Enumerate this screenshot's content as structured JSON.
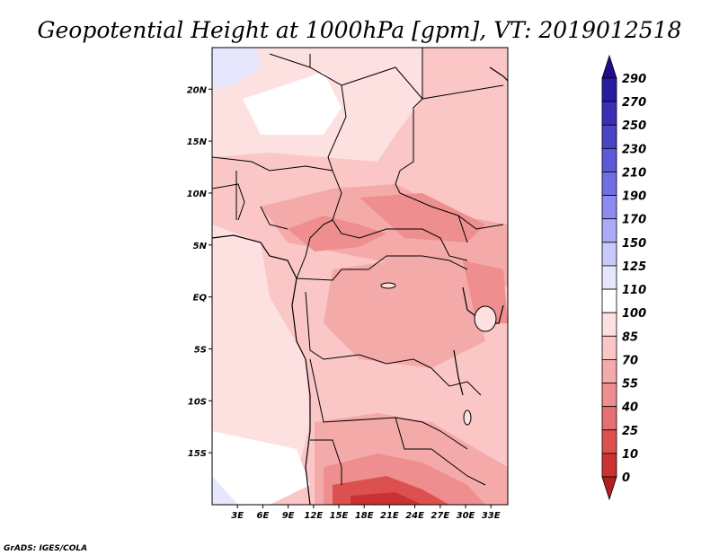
{
  "title": "Geopotential Height at 1000hPa [gpm], VT: 2019012518",
  "credit": "GrADS: IGES/COLA",
  "map": {
    "lon_range": [
      0,
      35
    ],
    "lat_range": [
      -20,
      24
    ],
    "lon_ticks": [
      "3E",
      "6E",
      "9E",
      "12E",
      "15E",
      "18E",
      "21E",
      "24E",
      "27E",
      "30E",
      "33E"
    ],
    "lat_ticks": [
      "20N",
      "15N",
      "10N",
      "5N",
      "EQ",
      "5S",
      "10S",
      "15S"
    ]
  },
  "colorbar": {
    "labels": [
      "290",
      "270",
      "250",
      "230",
      "210",
      "190",
      "170",
      "150",
      "125",
      "110",
      "100",
      "85",
      "70",
      "55",
      "40",
      "25",
      "10",
      "0"
    ],
    "colors": [
      "#1e0d8c",
      "#2a1aa0",
      "#3a2eb4",
      "#4a44c6",
      "#5c5ad6",
      "#7070e4",
      "#8c8cf0",
      "#aaaaf6",
      "#c8c8fa",
      "#e6e6fc",
      "#ffffff",
      "#fde0e0",
      "#fac6c6",
      "#f5aaaa",
      "#ee8e8e",
      "#e67070",
      "#dc5050",
      "#cd3232",
      "#b41e1e"
    ]
  },
  "regions": [
    {
      "name": "sahara-light",
      "color": "#fde0e0"
    },
    {
      "name": "sahel-band",
      "color": "#fac6c6"
    },
    {
      "name": "central-africa",
      "color": "#f5aaaa"
    },
    {
      "name": "lake-region",
      "color": "#ee8e8e"
    },
    {
      "name": "atlantic",
      "color": "#fde0e0"
    },
    {
      "name": "south-low",
      "color": "#cd3232"
    },
    {
      "name": "blue-patch",
      "color": "#e6e6fc"
    }
  ]
}
